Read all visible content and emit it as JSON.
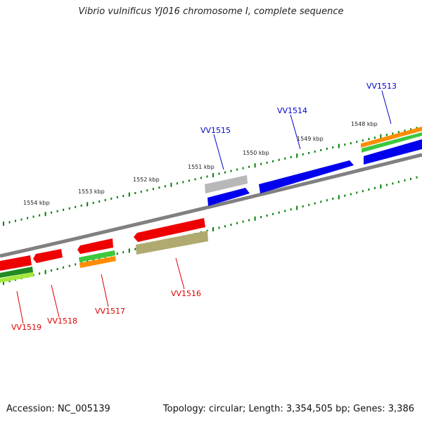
{
  "title": "Vibrio vulnificus YJ016 chromosome I, complete sequence",
  "footer": {
    "accession": "Accession: NC_005139",
    "summary": "Topology: circular; Length: 3,354,505 bp; Genes: 3,386"
  },
  "colors": {
    "backbone": "#808080",
    "tick": "#008000",
    "label_top": "#0000cc",
    "label_bottom": "#dd0000",
    "blue_gene": "#0000ee",
    "red_gene": "#ee0000",
    "gray_gene": "#b8b8b8",
    "olive_gene": "#b0aa70",
    "orange_gene": "#ff8c00",
    "green_gene": "#3cc83c",
    "darkgreen_gene": "#228b22",
    "lime_gene": "#a4e83c"
  },
  "scale_labels": [
    "1548 kbp",
    "1549 kbp",
    "1550 kbp",
    "1551 kbp",
    "1552 kbp",
    "1553 kbp",
    "1554 kbp"
  ],
  "genes_top": [
    "VV1513",
    "VV1514",
    "VV1515"
  ],
  "genes_bottom": [
    "VV1516",
    "VV1517",
    "VV1518",
    "VV1519"
  ]
}
